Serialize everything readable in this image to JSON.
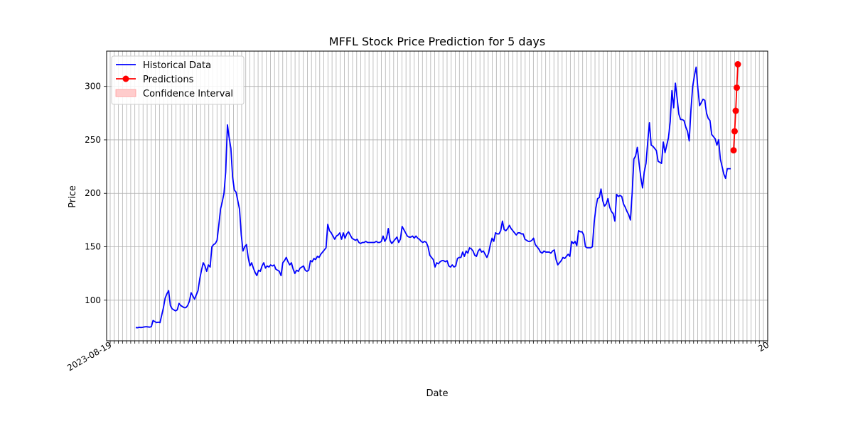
{
  "chart_data": {
    "type": "line",
    "title": "MFFL Stock Price Prediction for 5 days",
    "xlabel": "Date",
    "ylabel": "Price",
    "ylim": [
      62,
      333
    ],
    "yticks": [
      100,
      150,
      200,
      250,
      300
    ],
    "grid": true,
    "legend": {
      "placement": "upper-left",
      "entries": [
        "Historical Data",
        "Predictions",
        "Confidence Interval"
      ]
    },
    "colors": {
      "historical": "#0000ff",
      "predictions": "#ff0000",
      "confidence": "#ffcccc"
    },
    "x_tick_count": 161,
    "x_tick_labels_note": "overlapping date labels; leftmost readable: 2023-08-19, rightmost readable: 20",
    "x_tick_label_first": "2023-08-19",
    "x_tick_label_last": "20",
    "series": [
      {
        "name": "Historical Data",
        "values": [
          74.4,
          74.2,
          74.6,
          74.4,
          74.6,
          75.0,
          75.2,
          75.0,
          74.8,
          75.2,
          81,
          80,
          79,
          79.4,
          79,
          86,
          93,
          102,
          106,
          109,
          95,
          92,
          91,
          90,
          91,
          97,
          95,
          94,
          93,
          93,
          95,
          99,
          107,
          104,
          101,
          105,
          109,
          120,
          128,
          135,
          132,
          127,
          133,
          131,
          150,
          152,
          153,
          156,
          170,
          185,
          192,
          200,
          220,
          264,
          252,
          242,
          215,
          203,
          201,
          193,
          185,
          161,
          146,
          150,
          152,
          140,
          132,
          135,
          130,
          126,
          123,
          128,
          127,
          132,
          135,
          130,
          132,
          131,
          133,
          132,
          133,
          129,
          128,
          127,
          123,
          135,
          137,
          140,
          136,
          133,
          135,
          129,
          125,
          128,
          127,
          130,
          131,
          132,
          128,
          127,
          128,
          137,
          136,
          139,
          138,
          141,
          140,
          143,
          145,
          147,
          149,
          171,
          165,
          163,
          160,
          157,
          160,
          161,
          163,
          157,
          163,
          158,
          162,
          164,
          161,
          158,
          157,
          156,
          157,
          154,
          153,
          154,
          154,
          155,
          154,
          154,
          154,
          154,
          154,
          155,
          154,
          154,
          155,
          160,
          155,
          158,
          167,
          156,
          153,
          155,
          157,
          159,
          154,
          157,
          169,
          166,
          163,
          160,
          159,
          159,
          160,
          158,
          160,
          158,
          157,
          155,
          154,
          155,
          154,
          150,
          142,
          140,
          138,
          131,
          135,
          134,
          136,
          137,
          137,
          136,
          137,
          132,
          131,
          133,
          131,
          132,
          139,
          140,
          140,
          145,
          141,
          146,
          144,
          149,
          148,
          146,
          142,
          141,
          146,
          148,
          145,
          146,
          143,
          140,
          144,
          152,
          158,
          155,
          163,
          162,
          162,
          165,
          174,
          166,
          165,
          167,
          170,
          167,
          165,
          163,
          161,
          163,
          163,
          162,
          162,
          157,
          156,
          155,
          155,
          156,
          158,
          152,
          150,
          148,
          145,
          144,
          146,
          145,
          145,
          145,
          144,
          146,
          147,
          138,
          133,
          135,
          137,
          140,
          139,
          141,
          143,
          141,
          155,
          153,
          155,
          151,
          165,
          164,
          164,
          161,
          150,
          149,
          149,
          149,
          150,
          172,
          186,
          195,
          196,
          204,
          193,
          188,
          190,
          195,
          187,
          183,
          181,
          174,
          199,
          197,
          198,
          197,
          190,
          187,
          183,
          180,
          175,
          200,
          232,
          235,
          243,
          228,
          215,
          205,
          220,
          228,
          248,
          266,
          245,
          244,
          242,
          240,
          230,
          229,
          228,
          248,
          238,
          245,
          252,
          267,
          296,
          280,
          303,
          289,
          274,
          269,
          269,
          268,
          262,
          258,
          249,
          278,
          300,
          310,
          318,
          298,
          282,
          285,
          288,
          287,
          275,
          270,
          268,
          255,
          253,
          251,
          245,
          250,
          232,
          225,
          218,
          214,
          223,
          223,
          223
        ]
      },
      {
        "name": "Predictions",
        "values": [
          240.2,
          258.0,
          277.2,
          298.8,
          320.7
        ]
      }
    ]
  }
}
